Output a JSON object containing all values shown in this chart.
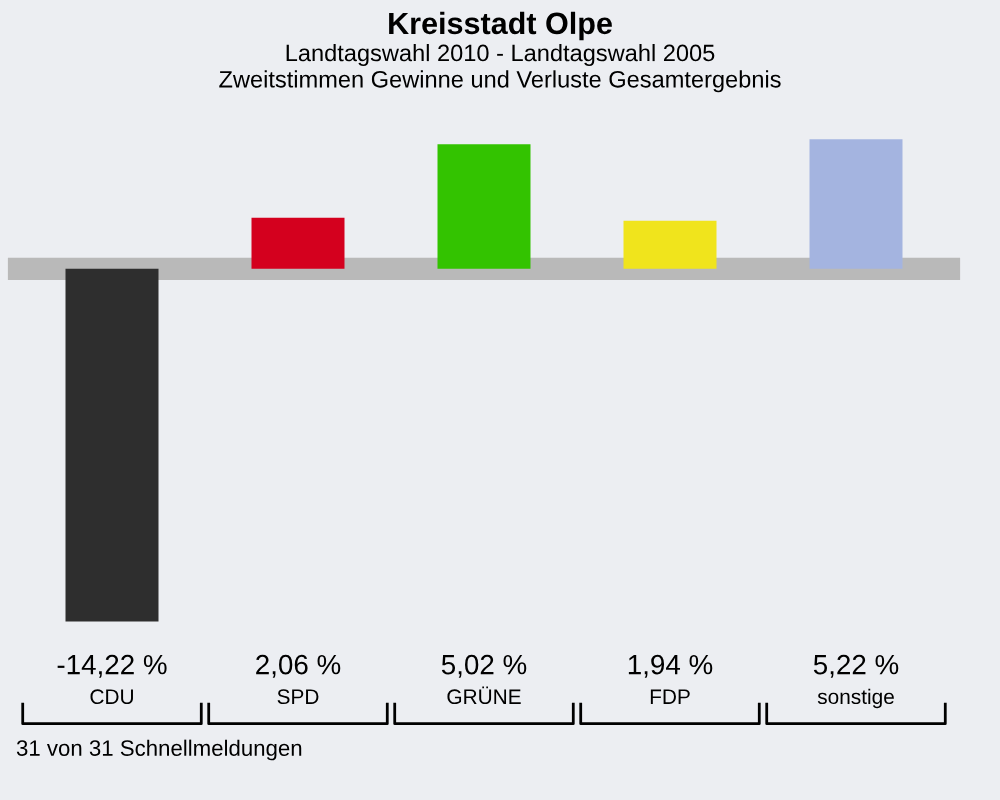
{
  "chart_data": {
    "type": "bar",
    "title": "Kreisstadt Olpe",
    "subtitle": "Landtagswahl 2010 - Landtagswahl 2005\nZweitstimmen Gewinne und Verluste Gesamtergebnis",
    "categories": [
      "CDU",
      "SPD",
      "GRÜNE",
      "FDP",
      "sonstige"
    ],
    "values": [
      -14.22,
      2.06,
      5.02,
      1.94,
      5.22
    ],
    "colors": [
      "#2e2e2e",
      "#d4001e",
      "#33c300",
      "#f0e41c",
      "#a4b4e0"
    ],
    "value_labels": [
      "-14,22 %",
      "2,06 %",
      "5,02 %",
      "1,94 %",
      "5,22 %"
    ],
    "annotations": [
      "31 von 31 Schnellmeldungen"
    ]
  }
}
